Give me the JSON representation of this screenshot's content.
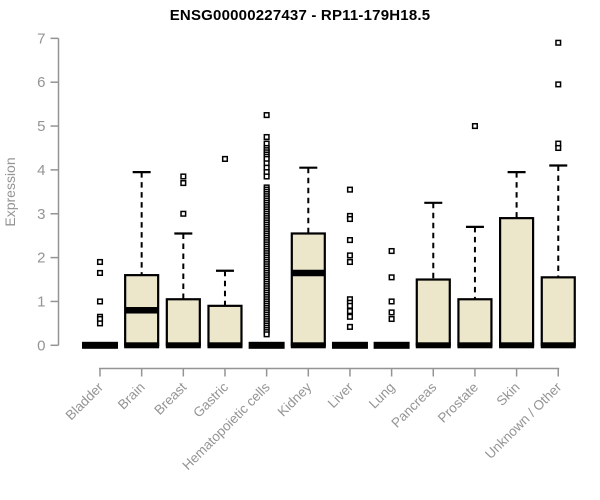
{
  "title": "ENSG00000227437 - RP11-179H18.5",
  "colors": {
    "background": "#ffffff",
    "box_fill": "#ece6cb",
    "box_stroke": "#000000",
    "median_color": "#000000",
    "outlier_fill": "#ffffff",
    "outlier_stroke": "#000000",
    "axis_color": "#949494",
    "label_color": "#949494",
    "title_color": "#000000"
  },
  "chart_data": {
    "type": "boxplot",
    "title": "ENSG00000227437 - RP11-179H18.5",
    "xlabel": "",
    "ylabel": "Expression",
    "ylim": [
      0,
      7
    ],
    "yticks": [
      0,
      1,
      2,
      3,
      4,
      5,
      6,
      7
    ],
    "grid": false,
    "legend": false,
    "categories": [
      "Bladder",
      "Brain",
      "Breast",
      "Gastric",
      "Hematopoietic cells",
      "Kidney",
      "Liver",
      "Lung",
      "Pancreas",
      "Prostate",
      "Skin",
      "Unknown / Other"
    ],
    "series": [
      {
        "category": "Bladder",
        "whisker_low": 0,
        "q1": 0,
        "median": 0,
        "q3": 0,
        "whisker_high": 0,
        "outliers": [
          1.9,
          1.65,
          1.0,
          0.65,
          0.6,
          0.5
        ]
      },
      {
        "category": "Brain",
        "whisker_low": 0,
        "q1": 0,
        "median": 0.8,
        "q3": 1.6,
        "whisker_high": 3.95,
        "outliers": []
      },
      {
        "category": "Breast",
        "whisker_low": 0,
        "q1": 0,
        "median": 0,
        "q3": 1.05,
        "whisker_high": 2.55,
        "outliers": [
          3.85,
          3.7,
          3.0
        ]
      },
      {
        "category": "Gastric",
        "whisker_low": 0,
        "q1": 0,
        "median": 0,
        "q3": 0.9,
        "whisker_high": 1.7,
        "outliers": [
          4.25
        ]
      },
      {
        "category": "Hematopoietic cells",
        "whisker_low": 0,
        "q1": 0,
        "median": 0,
        "q3": 0,
        "whisker_high": 0,
        "outliers": [
          5.25,
          4.75,
          4.6,
          4.5,
          4.45,
          4.4,
          4.35,
          4.3,
          4.25,
          4.15,
          4.05,
          3.95,
          3.85,
          3.6,
          3.55,
          3.5,
          3.45,
          3.4,
          3.35,
          3.3,
          3.25,
          3.2,
          3.15,
          3.1,
          3.05,
          3.0,
          2.95,
          2.9,
          2.85,
          2.8,
          2.75,
          2.7,
          2.65,
          2.6,
          2.55,
          2.5,
          2.45,
          2.4,
          2.35,
          2.3,
          2.25,
          2.2,
          2.15,
          2.1,
          2.05,
          2.0,
          1.95,
          1.9,
          1.85,
          1.8,
          1.75,
          1.7,
          1.65,
          1.6,
          1.55,
          1.5,
          1.45,
          1.4,
          1.35,
          1.3,
          1.25,
          1.2,
          1.15,
          1.1,
          1.05,
          1.0,
          0.95,
          0.9,
          0.85,
          0.8,
          0.75,
          0.7,
          0.65,
          0.6,
          0.55,
          0.5,
          0.45,
          0.4,
          0.35,
          0.3,
          0.25
        ]
      },
      {
        "category": "Kidney",
        "whisker_low": 0,
        "q1": 0,
        "median": 1.65,
        "q3": 2.55,
        "whisker_high": 4.05,
        "outliers": []
      },
      {
        "category": "Liver",
        "whisker_low": 0,
        "q1": 0,
        "median": 0,
        "q3": 0,
        "whisker_high": 0,
        "outliers": [
          3.55,
          2.95,
          2.88,
          2.4,
          2.05,
          1.9,
          1.05,
          0.97,
          0.9,
          0.78,
          0.65,
          0.42
        ]
      },
      {
        "category": "Lung",
        "whisker_low": 0,
        "q1": 0,
        "median": 0,
        "q3": 0,
        "whisker_high": 0,
        "outliers": [
          2.15,
          1.55,
          1.0,
          0.75,
          0.6
        ]
      },
      {
        "category": "Pancreas",
        "whisker_low": 0,
        "q1": 0,
        "median": 0,
        "q3": 1.5,
        "whisker_high": 3.25,
        "outliers": []
      },
      {
        "category": "Prostate",
        "whisker_low": 0,
        "q1": 0,
        "median": 0,
        "q3": 1.05,
        "whisker_high": 2.7,
        "outliers": [
          5.0
        ]
      },
      {
        "category": "Skin",
        "whisker_low": 0,
        "q1": 0,
        "median": 0,
        "q3": 2.9,
        "whisker_high": 3.95,
        "outliers": []
      },
      {
        "category": "Unknown / Other",
        "whisker_low": 0,
        "q1": 0,
        "median": 0,
        "q3": 1.55,
        "whisker_high": 4.1,
        "outliers": [
          6.9,
          5.95,
          4.6,
          4.5
        ]
      }
    ]
  }
}
